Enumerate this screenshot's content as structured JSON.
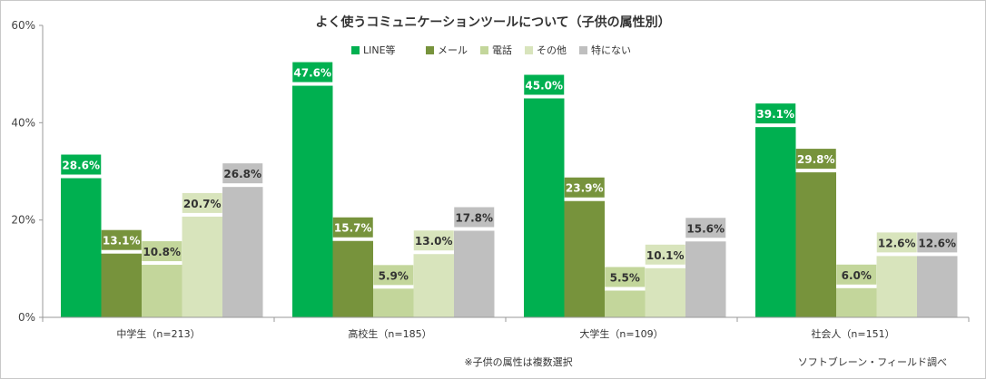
{
  "chart_data": {
    "type": "bar",
    "title": "よく使うコミュニケーションツールについて（子供の属性別）",
    "categories": [
      "中学生（n=213）",
      "高校生（n=185）",
      "大学生（n=109）",
      "社会人（n=151）"
    ],
    "series": [
      {
        "name": "LINE等",
        "color": "#00b050",
        "label_text_color": "#ffffff",
        "values": [
          28.6,
          47.6,
          45.0,
          39.1
        ],
        "labels": [
          "28.6%",
          "47.6%",
          "45.0%",
          "39.1%"
        ]
      },
      {
        "name": "メール",
        "color": "#77933c",
        "label_text_color": "#ffffff",
        "values": [
          13.1,
          15.7,
          23.9,
          29.8
        ],
        "labels": [
          "13.1%",
          "15.7%",
          "23.9%",
          "29.8%"
        ]
      },
      {
        "name": "電話",
        "color": "#c3d69b",
        "label_text_color": "#333333",
        "values": [
          10.8,
          5.9,
          5.5,
          6.0
        ],
        "labels": [
          "10.8%",
          "5.9%",
          "5.5%",
          "6.0%"
        ]
      },
      {
        "name": "その他",
        "color": "#d8e4bc",
        "label_text_color": "#333333",
        "values": [
          20.7,
          13.0,
          10.1,
          12.6
        ],
        "labels": [
          "20.7%",
          "13.0%",
          "10.1%",
          "12.6%"
        ]
      },
      {
        "name": "特にない",
        "color": "#bfbfbf",
        "label_text_color": "#333333",
        "values": [
          26.8,
          17.8,
          15.6,
          12.6
        ],
        "labels": [
          "26.8%",
          "17.8%",
          "15.6%",
          "12.6%"
        ]
      }
    ],
    "ylim": [
      0,
      60
    ],
    "yticks": [
      0,
      20,
      40,
      60
    ],
    "ytick_labels": [
      "0%",
      "20%",
      "40%",
      "60%"
    ],
    "legend_position": "top-center",
    "grid": false
  },
  "notes": {
    "footnote": "※子供の属性は複数選択",
    "source": "ソフトブレーン・フィールド調べ"
  }
}
